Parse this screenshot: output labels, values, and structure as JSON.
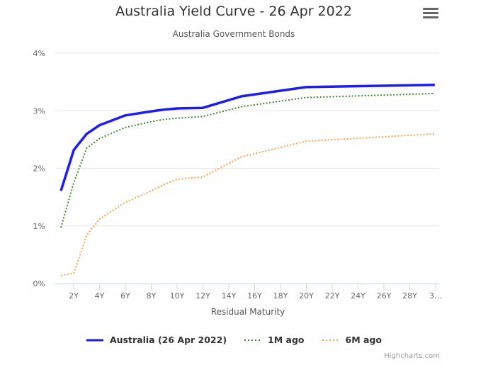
{
  "header": {
    "title": "Australia Yield Curve - 26 Apr 2022",
    "subtitle": "Australia Government Bonds",
    "menu_icon": "hamburger-menu-icon"
  },
  "legend": {
    "items": [
      {
        "label": "Australia (26 Apr 2022)",
        "color": "#1a1aff",
        "style": "solid"
      },
      {
        "label": "1M ago",
        "color": "#3a8a2a",
        "style": "dotted"
      },
      {
        "label": "6M ago",
        "color": "#ffa04a",
        "style": "dotted"
      }
    ]
  },
  "credits": "Highcharts.com",
  "chart_data": {
    "type": "line",
    "title": "Australia Yield Curve - 26 Apr 2022",
    "subtitle": "Australia Government Bonds",
    "xlabel": "Residual Maturity",
    "ylabel": "",
    "ylim": [
      0,
      4
    ],
    "y_ticks": [
      "0%",
      "1%",
      "2%",
      "3%",
      "4%"
    ],
    "x_ticks": [
      "2Y",
      "4Y",
      "6Y",
      "8Y",
      "10Y",
      "12Y",
      "14Y",
      "16Y",
      "18Y",
      "20Y",
      "22Y",
      "24Y",
      "26Y",
      "28Y",
      "3…"
    ],
    "grid": true,
    "legend_position": "bottom",
    "x": [
      1,
      2,
      3,
      4,
      6,
      8,
      9,
      10,
      12,
      15,
      20,
      30
    ],
    "series": [
      {
        "name": "Australia (26 Apr 2022)",
        "values": [
          1.61,
          2.32,
          2.6,
          2.75,
          2.92,
          2.99,
          3.02,
          3.04,
          3.05,
          3.25,
          3.41,
          3.45
        ]
      },
      {
        "name": "1M ago",
        "values": [
          0.97,
          1.75,
          2.35,
          2.52,
          2.71,
          2.81,
          2.85,
          2.87,
          2.9,
          3.07,
          3.23,
          3.3
        ]
      },
      {
        "name": "6M ago",
        "values": [
          0.14,
          0.18,
          0.84,
          1.12,
          1.41,
          1.61,
          1.72,
          1.81,
          1.85,
          2.2,
          2.47,
          2.6
        ]
      }
    ]
  }
}
